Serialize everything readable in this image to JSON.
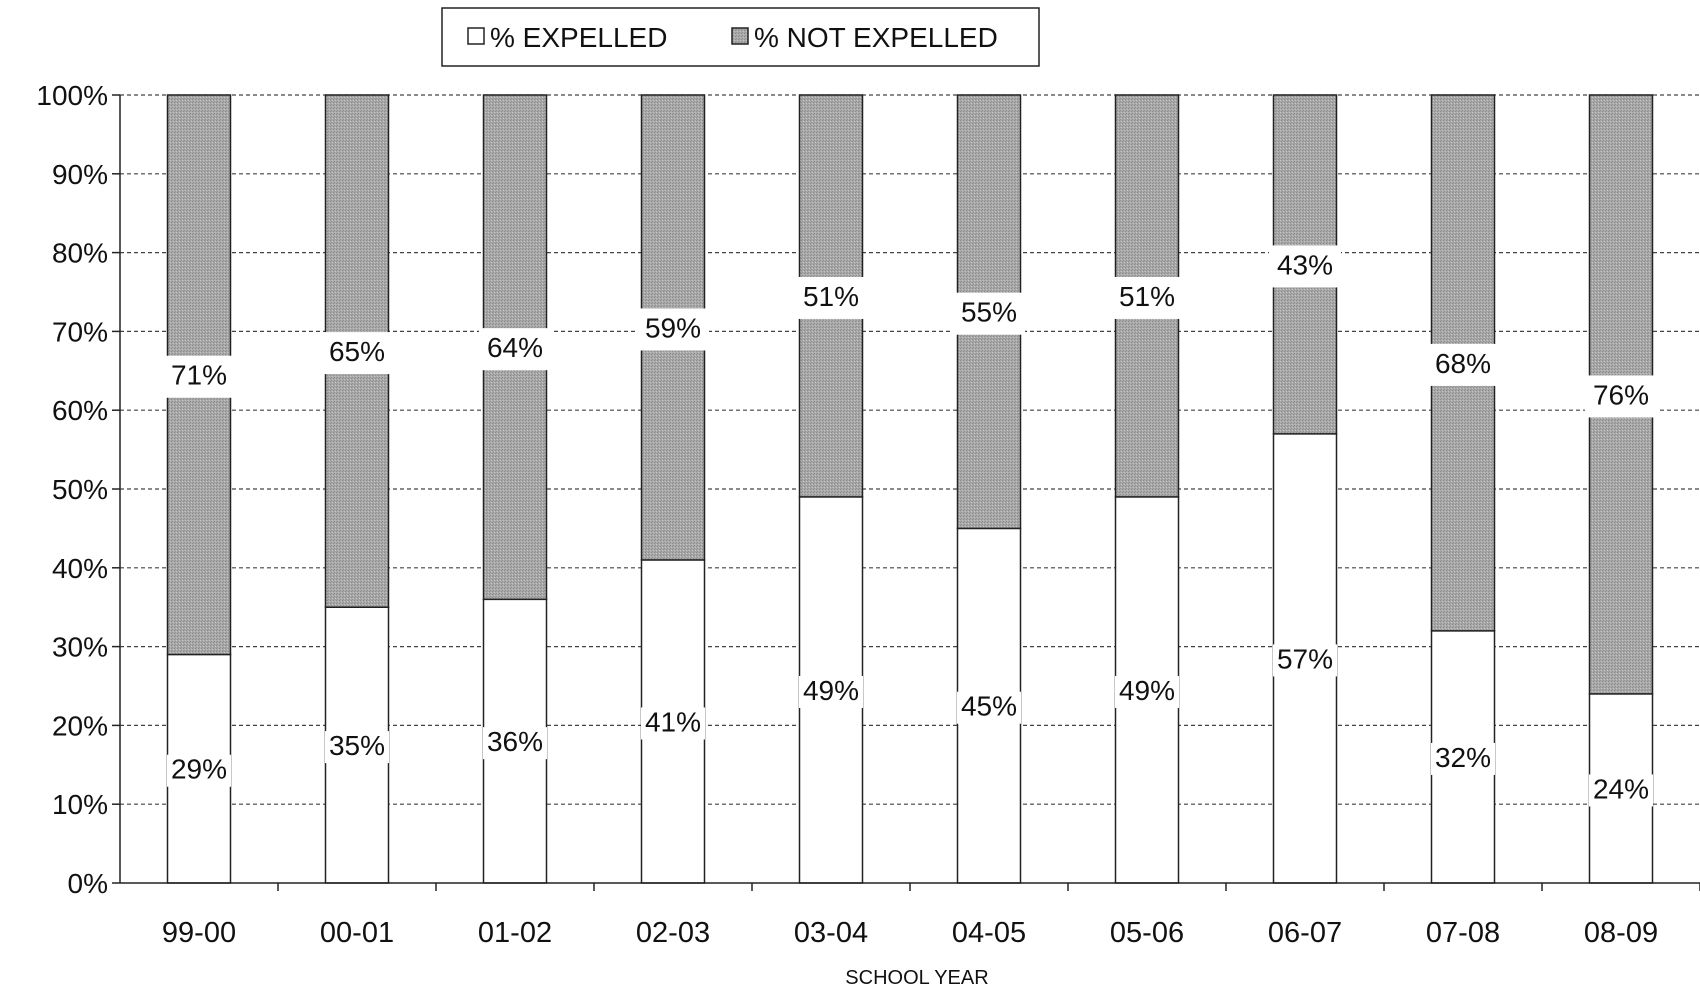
{
  "chart_data": {
    "type": "bar",
    "stacked": true,
    "percent_stacked": true,
    "categories": [
      "99-00",
      "00-01",
      "01-02",
      "02-03",
      "03-04",
      "04-05",
      "05-06",
      "06-07",
      "07-08",
      "08-09"
    ],
    "series": [
      {
        "name": "% EXPELLED",
        "values": [
          29,
          35,
          36,
          41,
          49,
          45,
          49,
          57,
          32,
          24
        ],
        "labels": [
          "29%",
          "35%",
          "36%",
          "41%",
          "49%",
          "45%",
          "49%",
          "57%",
          "32%",
          "24%"
        ],
        "color": "#ffffff"
      },
      {
        "name": "% NOT EXPELLED",
        "values": [
          71,
          65,
          64,
          59,
          51,
          55,
          51,
          43,
          68,
          76
        ],
        "labels": [
          "71%",
          "65%",
          "64%",
          "59%",
          "51%",
          "55%",
          "51%",
          "43%",
          "68%",
          "76%"
        ],
        "color": "#a6a6a6"
      }
    ],
    "xlabel": "SCHOOL YEAR",
    "ylabel": "",
    "ylim": [
      0,
      100
    ],
    "yticks": [
      "0%",
      "10%",
      "20%",
      "30%",
      "40%",
      "50%",
      "60%",
      "70%",
      "80%",
      "90%",
      "100%"
    ],
    "grid": "horizontal-dashed",
    "legend_position": "top-center"
  }
}
